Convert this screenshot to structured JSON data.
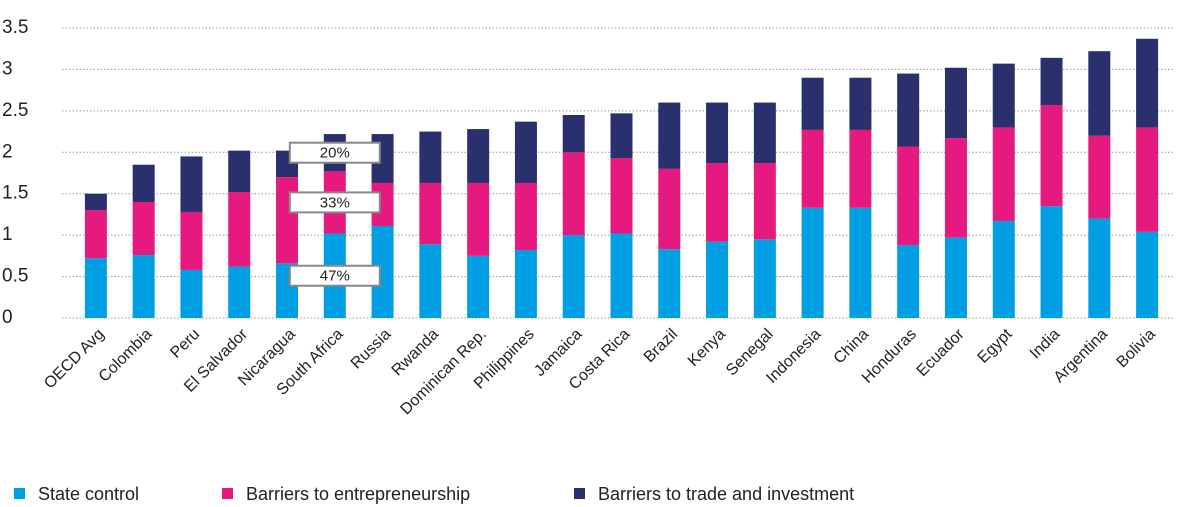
{
  "chart_data": {
    "type": "stacked_bar",
    "categories": [
      "OECD Avg",
      "Colombia",
      "Peru",
      "El Salvador",
      "Nicaragua",
      "South Africa",
      "Russia",
      "Rwanda",
      "Dominican Rep.",
      "Philippines",
      "Jamaica",
      "Costa Rica",
      "Brazil",
      "Kenya",
      "Senegal",
      "Indonesia",
      "China",
      "Honduras",
      "Ecuador",
      "Egypt",
      "India",
      "Argentina",
      "Bolivia"
    ],
    "series": [
      {
        "name": "State control",
        "color": "#009fe3",
        "values": [
          0.72,
          0.76,
          0.58,
          0.62,
          0.66,
          1.02,
          1.11,
          0.89,
          0.75,
          0.82,
          1.0,
          1.02,
          0.83,
          0.92,
          0.95,
          1.33,
          1.33,
          0.88,
          0.97,
          1.17,
          1.35,
          1.2,
          1.04
        ]
      },
      {
        "name": "Barriers to entrepreneurship",
        "color": "#e6197e",
        "values": [
          0.58,
          0.64,
          0.7,
          0.9,
          1.04,
          0.75,
          0.52,
          0.74,
          0.88,
          0.81,
          1.0,
          0.91,
          0.97,
          0.95,
          0.92,
          0.94,
          0.94,
          1.19,
          1.2,
          1.13,
          1.22,
          1.0,
          1.26
        ]
      },
      {
        "name": "Barriers to trade and investment",
        "color": "#2a2f6e",
        "values": [
          0.2,
          0.45,
          0.67,
          0.5,
          0.32,
          0.45,
          0.59,
          0.62,
          0.65,
          0.74,
          0.45,
          0.54,
          0.8,
          0.73,
          0.73,
          0.63,
          0.63,
          0.88,
          0.85,
          0.77,
          0.57,
          1.02,
          1.07
        ]
      }
    ],
    "annotations": [
      "20%",
      "33%",
      "47%"
    ],
    "ylim": [
      0,
      3.5
    ],
    "yticks": [
      0,
      0.5,
      1,
      1.5,
      2,
      2.5,
      3,
      3.5
    ],
    "grid": true,
    "legend": "bottom"
  }
}
